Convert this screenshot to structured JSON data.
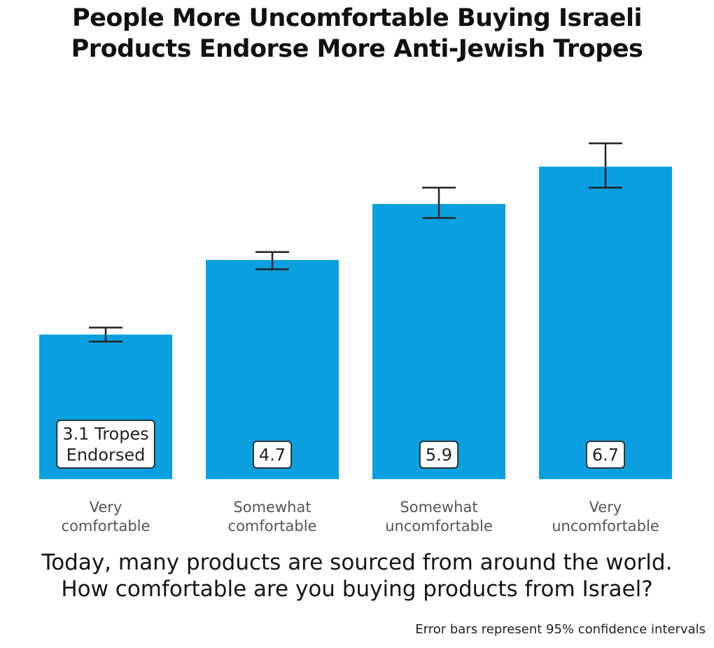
{
  "title_lines": [
    "People More Uncomfortable Buying Israeli",
    "Products Endorse More Anti-Jewish Tropes"
  ],
  "question_lines": [
    "Today, many products are sourced from around the world.",
    "How comfortable are you buying products from Israel?"
  ],
  "footnote": "Error bars represent 95% confidence intervals",
  "colors": {
    "bar": "#0aa0e0",
    "error_bar": "#222222",
    "label_box_border": "#222222",
    "category_text": "#555555"
  },
  "chart_data": {
    "type": "bar",
    "title": "People More Uncomfortable Buying Israeli Products Endorse More Anti-Jewish Tropes",
    "xlabel": "Today, many products are sourced from around the world. How comfortable are you buying products from Israel?",
    "ylabel": "",
    "ylim": [
      0,
      8.2
    ],
    "grid": false,
    "categories": [
      [
        "Very",
        "comfortable"
      ],
      [
        "Somewhat",
        "comfortable"
      ],
      [
        "Somewhat",
        "uncomfortable"
      ],
      [
        "Very",
        "uncomfortable"
      ]
    ],
    "values": [
      3.1,
      4.7,
      5.9,
      6.7
    ],
    "error_bars": [
      {
        "low": 2.95,
        "high": 3.25
      },
      {
        "low": 4.5,
        "high": 4.87
      },
      {
        "low": 5.6,
        "high": 6.25
      },
      {
        "low": 6.25,
        "high": 7.2
      }
    ],
    "data_labels": [
      [
        "3.1 Tropes",
        "Endorsed"
      ],
      [
        "4.7"
      ],
      [
        "5.9"
      ],
      [
        "6.7"
      ]
    ]
  }
}
